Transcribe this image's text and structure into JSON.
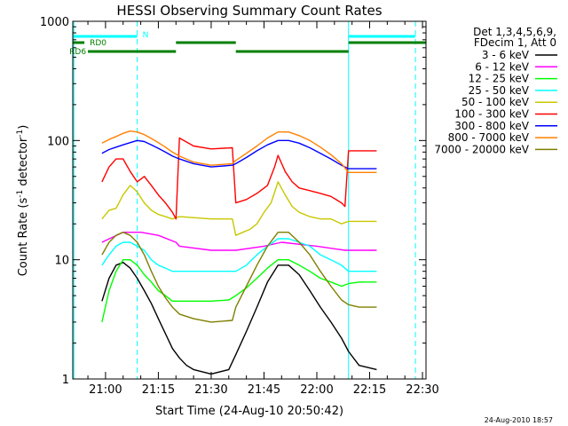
{
  "chart_data": {
    "type": "line",
    "title": "HESSI Observing Summary Count Rates",
    "xlabel": "Start Time (24-Aug-10 20:50:42)",
    "ylabel": "Count Rate (s",
    "ylabel_sup1": "-1",
    "ylabel_mid": " detector",
    "ylabel_sup2": "-1",
    "ylabel_end": ")",
    "y_scale": "log",
    "ylim": [
      1,
      1000
    ],
    "xlim": [
      "20:50:42",
      "22:31"
    ],
    "x_ticks": [
      "21:00",
      "21:15",
      "21:30",
      "21:45",
      "22:00",
      "22:15",
      "22:30"
    ],
    "y_ticks": [
      "1",
      "10",
      "100",
      "1000"
    ],
    "grid": false,
    "legend_placement": "right",
    "legend_header": [
      "Det 1,3,4,5,6,9,",
      "FDecim 1, Att 0"
    ],
    "timestamp": "24-Aug-2010 18:57",
    "annotations": [
      {
        "label": "N",
        "color": "#00ffff",
        "segments": [
          [
            "20:50:42",
            "21:09"
          ],
          [
            "22:09",
            "22:28"
          ]
        ]
      },
      {
        "label": "RD0",
        "color": "#007f00",
        "segments": [
          [
            "20:50:42",
            "20:54"
          ],
          [
            "21:20",
            "21:37"
          ],
          [
            "22:09",
            "22:31"
          ]
        ]
      },
      {
        "label": "RD6",
        "color": "#007f00",
        "segments": [
          [
            "20:55",
            "21:20"
          ],
          [
            "21:37",
            "22:09"
          ]
        ]
      }
    ],
    "vertical_markers": [
      {
        "time": "20:51",
        "color": "#00ffff",
        "style": "solid"
      },
      {
        "time": "21:09",
        "color": "#00ffff",
        "style": "dashed"
      },
      {
        "time": "22:09",
        "color": "#00ffff",
        "style": "solid"
      },
      {
        "time": "22:28",
        "color": "#00ffff",
        "style": "dashed"
      }
    ],
    "series": [
      {
        "name": "3 - 6 keV",
        "color": "#000000",
        "times": [
          "20:59",
          "21:01",
          "21:03",
          "21:05",
          "21:07",
          "21:09",
          "21:11",
          "21:13",
          "21:15",
          "21:17",
          "21:19",
          "21:21",
          "21:23",
          "21:25",
          "21:30",
          "21:35",
          "21:37",
          "21:40",
          "21:43",
          "21:46",
          "21:49",
          "21:52",
          "21:55",
          "21:58",
          "22:01",
          "22:04",
          "22:07",
          "22:09",
          "22:12",
          "22:17"
        ],
        "values": [
          4.5,
          7,
          9,
          9.5,
          8.5,
          7,
          5.5,
          4.3,
          3.2,
          2.4,
          1.8,
          1.5,
          1.3,
          1.2,
          1.1,
          1.2,
          1.6,
          2.5,
          4,
          6.5,
          9,
          9,
          7.5,
          5.5,
          4,
          3,
          2.2,
          1.7,
          1.3,
          1.2
        ]
      },
      {
        "name": "6 - 12 keV",
        "color": "#ff00ff",
        "times": [
          "20:59",
          "21:05",
          "21:10",
          "21:15",
          "21:20",
          "21:21",
          "21:30",
          "21:36",
          "21:37",
          "21:45",
          "21:50",
          "22:00",
          "22:08",
          "22:09",
          "22:17"
        ],
        "values": [
          14,
          17,
          17,
          16,
          14,
          13,
          12,
          12,
          12,
          13,
          14,
          13,
          12,
          12,
          12
        ]
      },
      {
        "name": "12 - 25 keV",
        "color": "#00ff00",
        "times": [
          "20:59",
          "21:01",
          "21:03",
          "21:05",
          "21:07",
          "21:09",
          "21:11",
          "21:13",
          "21:15",
          "21:17",
          "21:19",
          "21:21",
          "21:25",
          "21:30",
          "21:35",
          "21:37",
          "21:40",
          "21:43",
          "21:46",
          "21:49",
          "21:52",
          "21:55",
          "21:58",
          "22:01",
          "22:04",
          "22:07",
          "22:09",
          "22:12",
          "22:17"
        ],
        "values": [
          3,
          5.5,
          8,
          10,
          10,
          9,
          7.5,
          6.5,
          5.5,
          5,
          4.5,
          4.5,
          4.5,
          4.5,
          4.6,
          5,
          5.8,
          7,
          8.5,
          10,
          10,
          9,
          8,
          7,
          6.5,
          6,
          6.3,
          6.5,
          6.5
        ]
      },
      {
        "name": "25 - 50 keV",
        "color": "#00ffff",
        "times": [
          "20:59",
          "21:01",
          "21:03",
          "21:05",
          "21:07",
          "21:09",
          "21:11",
          "21:13",
          "21:15",
          "21:17",
          "21:19",
          "21:21",
          "21:30",
          "21:36",
          "21:37",
          "21:40",
          "21:43",
          "21:46",
          "21:49",
          "21:52",
          "21:55",
          "21:58",
          "22:01",
          "22:04",
          "22:07",
          "22:09",
          "22:12",
          "22:17"
        ],
        "values": [
          9,
          11,
          13,
          14,
          14,
          13,
          12,
          10,
          9,
          8.5,
          8,
          8,
          8,
          8,
          8,
          9,
          11,
          13,
          15,
          15,
          14,
          13,
          11,
          10,
          9,
          8,
          8,
          8
        ]
      },
      {
        "name": "50 - 100 keV",
        "color": "#c8c800",
        "times": [
          "20:59",
          "21:01",
          "21:03",
          "21:05",
          "21:07",
          "21:09",
          "21:11",
          "21:13",
          "21:15",
          "21:17",
          "21:19",
          "21:21",
          "21:30",
          "21:36",
          "21:37",
          "21:39",
          "21:41",
          "21:43",
          "21:45",
          "21:47",
          "21:49",
          "21:51",
          "21:53",
          "21:55",
          "21:58",
          "22:01",
          "22:04",
          "22:07",
          "22:09",
          "22:12",
          "22:17"
        ],
        "values": [
          22,
          26,
          27,
          35,
          42,
          37,
          30,
          26,
          24,
          23,
          22,
          23,
          22,
          22,
          16,
          17,
          18,
          20,
          25,
          30,
          45,
          35,
          28,
          25,
          23,
          22,
          22,
          20,
          21,
          21,
          21
        ]
      },
      {
        "name": "100 - 300 keV",
        "color": "#ff0000",
        "times": [
          "20:59",
          "21:01",
          "21:03",
          "21:05",
          "21:07",
          "21:09",
          "21:11",
          "21:13",
          "21:15",
          "21:17",
          "21:19",
          "21:20",
          "21:21",
          "21:25",
          "21:30",
          "21:36",
          "21:37",
          "21:40",
          "21:43",
          "21:46",
          "21:48",
          "21:49",
          "21:51",
          "21:53",
          "21:55",
          "21:58",
          "22:01",
          "22:04",
          "22:07",
          "22:08",
          "22:09",
          "22:12",
          "22:17"
        ],
        "values": [
          45,
          60,
          70,
          70,
          55,
          45,
          50,
          42,
          35,
          30,
          25,
          22,
          105,
          90,
          85,
          87,
          30,
          32,
          36,
          42,
          60,
          75,
          55,
          45,
          40,
          38,
          36,
          34,
          30,
          28,
          82,
          82,
          82
        ]
      },
      {
        "name": "300 - 800 keV",
        "color": "#0000ff",
        "times": [
          "20:59",
          "21:01",
          "21:03",
          "21:05",
          "21:07",
          "21:09",
          "21:11",
          "21:13",
          "21:15",
          "21:17",
          "21:19",
          "21:21",
          "21:25",
          "21:30",
          "21:36",
          "21:37",
          "21:40",
          "21:43",
          "21:46",
          "21:49",
          "21:52",
          "21:55",
          "21:58",
          "22:01",
          "22:04",
          "22:07",
          "22:09",
          "22:12",
          "22:17"
        ],
        "values": [
          78,
          84,
          88,
          92,
          96,
          100,
          98,
          92,
          86,
          80,
          74,
          70,
          64,
          60,
          62,
          64,
          72,
          82,
          92,
          100,
          100,
          95,
          87,
          78,
          70,
          62,
          58,
          58,
          58
        ]
      },
      {
        "name": "800 - 7000 keV",
        "color": "#ff8000",
        "times": [
          "20:59",
          "21:01",
          "21:03",
          "21:05",
          "21:07",
          "21:09",
          "21:11",
          "21:13",
          "21:15",
          "21:17",
          "21:19",
          "21:21",
          "21:25",
          "21:30",
          "21:36",
          "21:37",
          "21:40",
          "21:43",
          "21:46",
          "21:49",
          "21:52",
          "21:55",
          "21:58",
          "22:01",
          "22:04",
          "22:07",
          "22:09",
          "22:12",
          "22:17"
        ],
        "values": [
          95,
          102,
          108,
          115,
          120,
          118,
          112,
          104,
          96,
          88,
          80,
          74,
          66,
          62,
          64,
          68,
          78,
          90,
          105,
          118,
          118,
          110,
          100,
          88,
          76,
          64,
          54,
          54,
          54
        ]
      },
      {
        "name": "7000 - 20000 keV",
        "color": "#7f7f00",
        "times": [
          "20:59",
          "21:01",
          "21:03",
          "21:05",
          "21:07",
          "21:09",
          "21:11",
          "21:13",
          "21:15",
          "21:17",
          "21:19",
          "21:21",
          "21:25",
          "21:30",
          "21:36",
          "21:37",
          "21:40",
          "21:43",
          "21:46",
          "21:49",
          "21:52",
          "21:55",
          "21:58",
          "22:01",
          "22:04",
          "22:07",
          "22:09",
          "22:12",
          "22:17"
        ],
        "values": [
          11,
          14,
          16,
          17,
          16,
          14,
          11,
          8,
          6,
          4.8,
          4,
          3.5,
          3.2,
          3,
          3.1,
          4,
          6,
          9,
          13,
          17,
          17,
          14,
          11,
          8,
          6,
          4.6,
          4.2,
          4,
          4
        ]
      }
    ]
  }
}
